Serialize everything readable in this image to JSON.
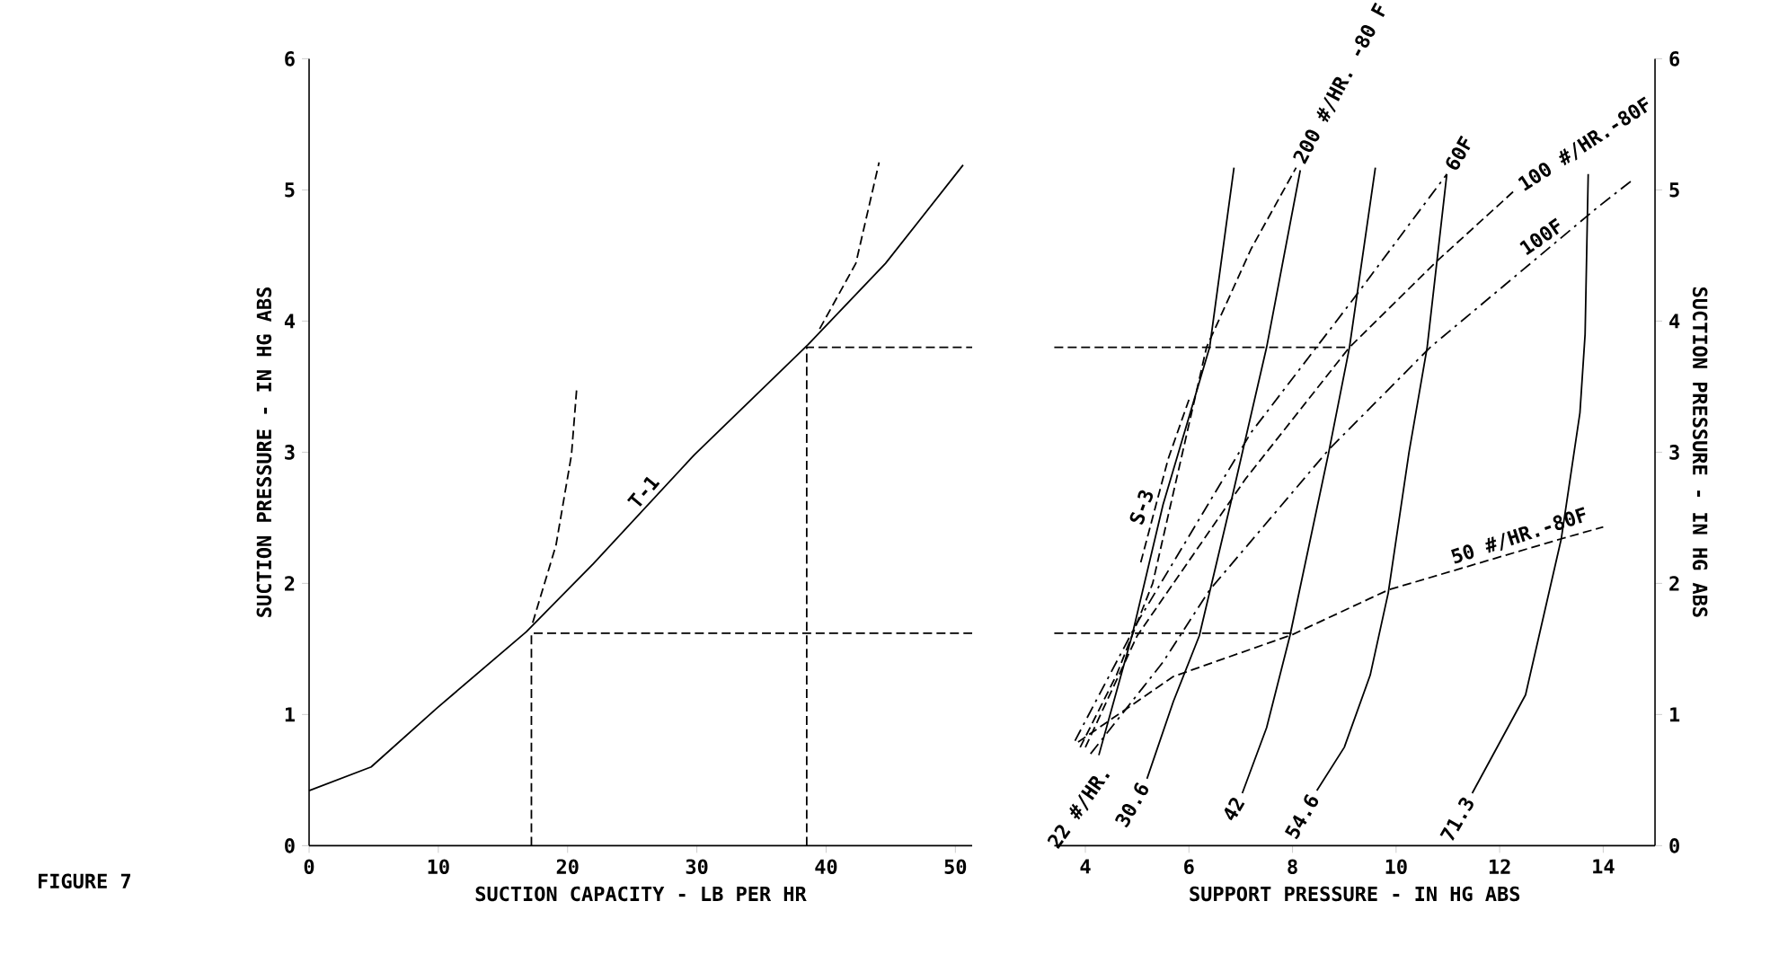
{
  "chart_data": [
    {
      "type": "line",
      "xlabel": "SUCTION CAPACITY - LB PER HR",
      "ylabel": "SUCTION PRESSURE - IN HG ABS",
      "xlim": [
        0,
        51.3
      ],
      "ylim": [
        0,
        6
      ],
      "xticks": [
        0,
        10,
        20,
        30,
        40,
        50
      ],
      "yticks": [
        0,
        1,
        2,
        3,
        4,
        5,
        6
      ],
      "series": [
        {
          "name": "T-1",
          "color": "#000000",
          "line_style": "solid",
          "x": [
            0,
            4.8,
            9.9,
            16.8,
            22,
            29.8,
            38.6,
            44.6,
            50.6
          ],
          "values": [
            0.42,
            0.6,
            1.05,
            1.63,
            2.15,
            2.98,
            3.82,
            4.44,
            5.19
          ]
        },
        {
          "color": "#000000",
          "line_style": "dashed",
          "x": [
            17.3,
            19.1,
            20.3,
            20.7
          ],
          "values": [
            1.7,
            2.29,
            2.98,
            3.48
          ]
        },
        {
          "color": "#000000",
          "line_style": "dashed",
          "x": [
            39.5,
            42.3,
            44.1
          ],
          "values": [
            3.94,
            4.44,
            5.21
          ]
        },
        {
          "color": "#000000",
          "line_style": "dashed",
          "x": [
            17.2,
            17.2,
            51.3
          ],
          "values": [
            0,
            1.62,
            1.62
          ]
        },
        {
          "color": "#000000",
          "line_style": "dashed",
          "x": [
            38.5,
            38.5,
            51.3
          ],
          "values": [
            0,
            3.8,
            3.8
          ]
        }
      ],
      "annotations": [
        "FIGURE 7"
      ]
    },
    {
      "type": "line",
      "xlabel": "SUPPORT PRESSURE - IN HG ABS",
      "ylabel": "SUCTION PRESSURE - IN HG ABS",
      "xlim": [
        3.4,
        15.0
      ],
      "ylim": [
        0,
        6
      ],
      "xticks": [
        4,
        6,
        8,
        10,
        12,
        14
      ],
      "yticks": [
        0,
        1,
        2,
        3,
        4,
        5,
        6
      ],
      "series": [
        {
          "name": "22 #/HR.",
          "color": "#000000",
          "line_style": "solid",
          "x": [
            4.26,
            4.9,
            5.5,
            6.4,
            6.87
          ],
          "values": [
            0.69,
            1.6,
            2.6,
            3.8,
            5.17
          ]
        },
        {
          "name": "30.6",
          "color": "#000000",
          "line_style": "solid",
          "x": [
            5.19,
            5.7,
            6.2,
            6.8,
            7.5,
            8.15
          ],
          "values": [
            0.51,
            1.1,
            1.6,
            2.6,
            3.8,
            5.15
          ]
        },
        {
          "name": "42",
          "color": "#000000",
          "line_style": "solid",
          "x": [
            7.03,
            7.5,
            7.95,
            8.7,
            9.1,
            9.6
          ],
          "values": [
            0.4,
            0.9,
            1.6,
            3.0,
            3.8,
            5.17
          ]
        },
        {
          "name": "54.6",
          "color": "#000000",
          "line_style": "solid",
          "x": [
            8.47,
            9.0,
            9.5,
            9.85,
            10.25,
            10.6,
            10.98
          ],
          "values": [
            0.42,
            0.75,
            1.3,
            1.93,
            3.0,
            3.8,
            5.12
          ]
        },
        {
          "name": "71.3",
          "color": "#000000",
          "line_style": "solid",
          "x": [
            11.47,
            12.5,
            13.19,
            13.55,
            13.65,
            13.71
          ],
          "values": [
            0.4,
            1.15,
            2.34,
            3.3,
            3.9,
            5.12
          ]
        },
        {
          "name": "S-3",
          "color": "#000000",
          "line_style": "dashed",
          "x": [
            5.07,
            5.6,
            6.0
          ],
          "values": [
            2.16,
            2.95,
            3.4
          ]
        },
        {
          "name": "200 #/HR. -80 F",
          "color": "#000000",
          "line_style": "dashed",
          "x": [
            3.9,
            4.6,
            5.3,
            6.34,
            7.2,
            8.07
          ],
          "values": [
            0.75,
            1.3,
            2.0,
            3.8,
            4.55,
            5.17
          ]
        },
        {
          "name": "60F",
          "color": "#000000",
          "line_style": "dashdot",
          "x": [
            3.8,
            5.0,
            7.2,
            9.16,
            10.98
          ],
          "values": [
            0.8,
            1.7,
            3.15,
            4.16,
            5.12
          ]
        },
        {
          "name": "100 #/HR.-80F",
          "color": "#000000",
          "line_style": "dashed",
          "x": [
            4.0,
            5.0,
            7.1,
            9.1,
            10.77,
            12.3
          ],
          "values": [
            0.75,
            1.6,
            2.8,
            3.8,
            4.45,
            5.0
          ]
        },
        {
          "name": "100F",
          "color": "#000000",
          "line_style": "dashdot",
          "x": [
            4.1,
            5.5,
            6.4,
            8.7,
            10.66,
            13.9,
            14.58
          ],
          "values": [
            0.7,
            1.4,
            1.95,
            3.02,
            3.8,
            4.87,
            5.08
          ]
        },
        {
          "name": "50 #/HR.-80F",
          "color": "#000000",
          "line_style": "dashed",
          "x": [
            3.86,
            5.7,
            8.0,
            9.85,
            13.19,
            14.0
          ],
          "values": [
            0.79,
            1.29,
            1.61,
            1.95,
            2.34,
            2.43
          ]
        },
        {
          "color": "#000000",
          "line_style": "dashed",
          "x": [
            3.4,
            8.0
          ],
          "values": [
            1.62,
            1.62
          ]
        },
        {
          "color": "#000000",
          "line_style": "dashed",
          "x": [
            3.4,
            9.1
          ],
          "values": [
            3.8,
            3.8
          ]
        }
      ]
    }
  ]
}
